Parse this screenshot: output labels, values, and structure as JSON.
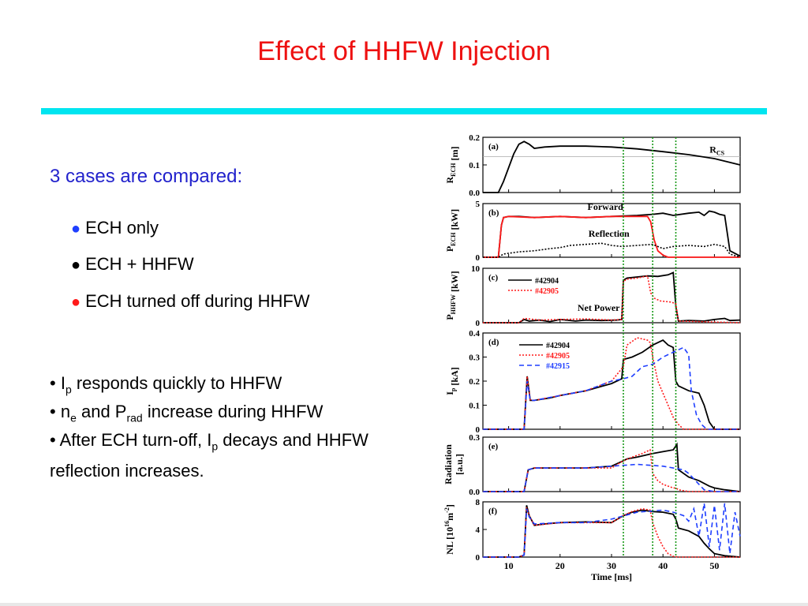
{
  "slide": {
    "title": "Effect of HHFW Injection",
    "intro": "3 cases are compared:",
    "cases": [
      {
        "label": "ECH only",
        "color": "#1f3fff"
      },
      {
        "label": "ECH + HHFW",
        "color": "#000000"
      },
      {
        "label": "ECH turned off during HHFW",
        "color": "#ff1a1a"
      }
    ],
    "notes": {
      "n1_a": "• I",
      "n1_sub": "p",
      "n1_b": " responds quickly to HHFW",
      "n2_a": "• n",
      "n2_sub1": "e",
      "n2_b": " and P",
      "n2_sub2": "rad",
      "n2_c": " increase during HHFW",
      "n3_a": "• After ECH turn-off, I",
      "n3_sub": "p",
      "n3_b": " decays and HHFW reflection increases."
    }
  },
  "chart_data": {
    "type": "line",
    "xlabel": "Time [ms]",
    "xlim": [
      5,
      55
    ],
    "x_ticks": [
      "10",
      "20",
      "30",
      "40",
      "50"
    ],
    "vlines": [
      32.3,
      38.0,
      42.5
    ],
    "colors": {
      "s42904": "#000000",
      "s42905": "#ff1a1a",
      "s42915": "#1f3fff",
      "vline": "#1a9a1a"
    },
    "panels": [
      {
        "id": "a",
        "tag": "(a)",
        "ylabel_main": "R",
        "ylabel_sub": "ECH",
        "ylabel_unit": " [m]",
        "ylim": [
          0,
          0.2
        ],
        "yticks": [
          "0.0",
          "0.1",
          "0.2"
        ],
        "yticks_v": [
          0,
          0.1,
          0.2
        ],
        "annotations": [
          {
            "text_main": "R",
            "text_sub": "CS",
            "x": 50.5,
            "y": 0.145
          }
        ],
        "hline": 0.13,
        "series": [
          {
            "key": "s42904",
            "style": "solid",
            "x": [
              5,
              8,
              9,
              10,
              11,
              12,
              13,
              14,
              15,
              17,
              20,
              25,
              30,
              35,
              40,
              45,
              50,
              55
            ],
            "y": [
              0,
              0,
              0.04,
              0.09,
              0.14,
              0.175,
              0.185,
              0.175,
              0.16,
              0.165,
              0.168,
              0.168,
              0.165,
              0.158,
              0.148,
              0.137,
              0.123,
              0.1
            ]
          }
        ]
      },
      {
        "id": "b",
        "tag": "(b)",
        "ylabel_main": "P",
        "ylabel_sub": "ECH",
        "ylabel_unit": " [kW]",
        "ylim": [
          0,
          5
        ],
        "yticks": [
          "0",
          "5"
        ],
        "yticks_v": [
          0,
          5
        ],
        "annotations": [
          {
            "text_main": "Forward",
            "x": 28.8,
            "y": 4.4
          },
          {
            "text_main": "Reflection",
            "x": 29.5,
            "y": 1.9
          }
        ],
        "series": [
          {
            "key": "s42904",
            "style": "solid",
            "x": [
              5,
              8,
              8.6,
              9,
              10,
              12,
              15,
              20,
              25,
              30,
              35,
              38,
              40,
              42,
              45,
              47,
              48,
              49,
              50,
              51,
              52,
              53,
              55
            ],
            "y": [
              0,
              0,
              3.0,
              3.7,
              3.8,
              3.8,
              3.7,
              3.8,
              3.7,
              3.8,
              3.9,
              4.0,
              4.1,
              3.9,
              4.1,
              4.2,
              3.9,
              4.3,
              4.2,
              4.0,
              3.9,
              0.6,
              0.1
            ]
          },
          {
            "key": "s42905",
            "style": "solid",
            "x": [
              5,
              8,
              8.6,
              9,
              10,
              15,
              20,
              25,
              30,
              35,
              37,
              37.6,
              38.3,
              39,
              40,
              41,
              55
            ],
            "y": [
              0,
              0,
              3.0,
              3.7,
              3.8,
              3.7,
              3.8,
              3.7,
              3.8,
              3.8,
              3.8,
              3.3,
              1.6,
              0.6,
              0.2,
              0,
              0
            ]
          },
          {
            "key": "s42904",
            "style": "dotted",
            "x": [
              5,
              8,
              9,
              12,
              15,
              18,
              20,
              22,
              25,
              28,
              30,
              32,
              35,
              38,
              40,
              42,
              45,
              48,
              50,
              52,
              53,
              55
            ],
            "y": [
              0,
              0,
              0.3,
              0.5,
              0.6,
              0.8,
              0.9,
              1.1,
              1.2,
              1.3,
              1.1,
              1.0,
              1.1,
              1.2,
              0.8,
              1.0,
              1.1,
              1.0,
              1.2,
              1.0,
              0.3,
              0
            ]
          }
        ]
      },
      {
        "id": "c",
        "tag": "(c)",
        "ylabel_main": "P",
        "ylabel_sub": "HHFW",
        "ylabel_unit": " [kW]",
        "ylim": [
          0,
          10
        ],
        "yticks": [
          "0",
          "10"
        ],
        "yticks_v": [
          0,
          10
        ],
        "annotations": [
          {
            "text_main": "Net Power",
            "x": 27.5,
            "y": 2.2
          }
        ],
        "legend": [
          {
            "label": "#42904",
            "key": "s42904",
            "style": "solid"
          },
          {
            "label": "#42905",
            "key": "s42905",
            "style": "dotted"
          }
        ],
        "series": [
          {
            "key": "s42904",
            "style": "solid",
            "x": [
              5,
              12,
              13,
              14,
              16,
              18,
              20,
              23,
              25,
              28,
              31,
              32,
              32.3,
              33,
              35,
              37,
              39,
              41,
              42,
              42.5,
              43,
              45,
              48,
              50,
              52,
              53,
              55
            ],
            "y": [
              0,
              0,
              0.6,
              0.3,
              0.5,
              0.2,
              0.6,
              0.3,
              0.5,
              0.4,
              0.5,
              0.6,
              7.8,
              8.2,
              8.4,
              8.6,
              8.5,
              8.8,
              9.2,
              3.0,
              0.3,
              0.4,
              0.3,
              0.6,
              0.8,
              0.4,
              0.5
            ]
          },
          {
            "key": "s42905",
            "style": "dotted",
            "x": [
              5,
              12,
              13,
              16,
              20,
              25,
              30,
              32,
              32.3,
              33,
              35,
              37,
              37.6,
              38.3,
              39.5,
              41.5,
              42.5,
              43,
              55
            ],
            "y": [
              0,
              0,
              0.8,
              0.5,
              0.6,
              0.7,
              0.5,
              0.6,
              7.6,
              8.0,
              8.2,
              8.6,
              5.5,
              4.5,
              4.0,
              3.8,
              3.5,
              0.3,
              0
            ]
          }
        ]
      },
      {
        "id": "d",
        "tag": "(d)",
        "ylabel_main": "I",
        "ylabel_sub": "p",
        "ylabel_unit": " [kA]",
        "ylim": [
          0,
          0.4
        ],
        "yticks": [
          "0",
          "0.1",
          "0.2",
          "0.3",
          "0.4"
        ],
        "yticks_v": [
          0,
          0.1,
          0.2,
          0.3,
          0.4
        ],
        "legend": [
          {
            "label": "#42904",
            "key": "s42904",
            "style": "solid"
          },
          {
            "label": "#42905",
            "key": "s42905",
            "style": "dotted"
          },
          {
            "label": "#42915",
            "key": "s42915",
            "style": "dashed"
          }
        ],
        "series": [
          {
            "key": "s42904",
            "style": "solid",
            "x": [
              5,
              13,
              13.6,
              14.2,
              15,
              18,
              20,
              25,
              30,
              32,
              32.3,
              34,
              36,
              38,
              40,
              41,
              42,
              42.5,
              43,
              45,
              47,
              48,
              49,
              50,
              55
            ],
            "y": [
              0,
              0,
              0.22,
              0.12,
              0.12,
              0.13,
              0.14,
              0.16,
              0.19,
              0.21,
              0.29,
              0.3,
              0.32,
              0.35,
              0.37,
              0.35,
              0.34,
              0.2,
              0.18,
              0.16,
              0.15,
              0.1,
              0.03,
              0,
              0
            ]
          },
          {
            "key": "s42905",
            "style": "dotted",
            "x": [
              5,
              13,
              13.6,
              14.2,
              15,
              20,
              25,
              30,
              32.3,
              33,
              35,
              37,
              37.5,
              38,
              39,
              40,
              41,
              42,
              43,
              44,
              46,
              55
            ],
            "y": [
              0,
              0,
              0.22,
              0.12,
              0.12,
              0.14,
              0.16,
              0.2,
              0.26,
              0.35,
              0.38,
              0.37,
              0.36,
              0.3,
              0.2,
              0.15,
              0.1,
              0.05,
              0.02,
              0,
              0,
              0
            ]
          },
          {
            "key": "s42915",
            "style": "dashed",
            "x": [
              5,
              13,
              13.6,
              14.2,
              15,
              20,
              25,
              30,
              32.3,
              34,
              36,
              38,
              40,
              42,
              44,
              45,
              45.5,
              46.5,
              47.5,
              48.5,
              50,
              55
            ],
            "y": [
              0,
              0,
              0.2,
              0.12,
              0.12,
              0.14,
              0.16,
              0.2,
              0.21,
              0.22,
              0.26,
              0.27,
              0.3,
              0.32,
              0.34,
              0.31,
              0.16,
              0.06,
              0.02,
              0,
              0,
              0
            ]
          }
        ]
      },
      {
        "id": "e",
        "tag": "(e)",
        "ylabel_main": "Radiation",
        "ylabel_line2": "[a.u.]",
        "ylim": [
          0,
          0.3
        ],
        "yticks": [
          "0.0",
          "0.3"
        ],
        "yticks_v": [
          0,
          0.3
        ],
        "series": [
          {
            "key": "s42904",
            "style": "solid",
            "x": [
              5,
              13,
              13.8,
              15,
              20,
              25,
              30,
              32.3,
              33,
              35,
              38,
              40,
              42,
              42.7,
              43,
              45,
              47,
              49,
              50,
              52,
              55
            ],
            "y": [
              0,
              0,
              0.12,
              0.13,
              0.13,
              0.13,
              0.14,
              0.17,
              0.18,
              0.19,
              0.21,
              0.22,
              0.23,
              0.26,
              0.12,
              0.08,
              0.06,
              0.03,
              0.02,
              0.01,
              0
            ]
          },
          {
            "key": "s42905",
            "style": "dotted",
            "x": [
              5,
              13,
              13.8,
              15,
              20,
              25,
              30,
              32.3,
              34,
              36,
              37.5,
              38,
              39,
              40,
              41,
              42,
              42.5,
              43,
              44,
              45,
              50,
              55
            ],
            "y": [
              0,
              0,
              0.12,
              0.13,
              0.13,
              0.13,
              0.13,
              0.17,
              0.19,
              0.21,
              0.23,
              0.1,
              0.06,
              0.04,
              0.03,
              0.02,
              0.02,
              0.01,
              0.005,
              0,
              0,
              0
            ]
          },
          {
            "key": "s42915",
            "style": "dashed",
            "x": [
              5,
              13,
              13.8,
              15,
              20,
              25,
              30,
              35,
              40,
              42,
              44,
              45,
              46,
              47,
              48,
              50,
              55
            ],
            "y": [
              0,
              0,
              0.12,
              0.13,
              0.13,
              0.13,
              0.14,
              0.15,
              0.14,
              0.13,
              0.12,
              0.1,
              0.07,
              0.04,
              0.01,
              0,
              0
            ]
          }
        ]
      },
      {
        "id": "f",
        "tag": "(f)",
        "ylabel_main": "NL [10",
        "ylabel_sup": "16",
        "ylabel_unit": "m",
        "ylabel_sup2": "-2",
        "ylabel_end": "]",
        "ylim": [
          0,
          8
        ],
        "yticks": [
          "0",
          "4",
          "8"
        ],
        "yticks_v": [
          0,
          4,
          8
        ],
        "series": [
          {
            "key": "s42904",
            "style": "solid",
            "x": [
              5,
              12,
              13,
              13.5,
              14,
              15,
              17,
              20,
              25,
              30,
              32.3,
              34,
              36,
              38,
              40,
              42,
              42.5,
              43,
              45,
              47,
              48,
              49,
              50,
              52,
              55
            ],
            "y": [
              0,
              0,
              0.3,
              7.5,
              6.0,
              4.6,
              4.8,
              5.0,
              5.1,
              5.0,
              6.0,
              6.5,
              6.8,
              6.6,
              6.5,
              6.2,
              5.5,
              4.2,
              3.8,
              3.0,
              2.0,
              1.2,
              0.5,
              0.2,
              0
            ]
          },
          {
            "key": "s42905",
            "style": "dotted",
            "x": [
              5,
              12,
              13,
              13.5,
              14,
              15,
              20,
              25,
              30,
              32.3,
              34,
              36,
              37.5,
              38,
              39,
              40,
              41,
              42,
              43,
              55
            ],
            "y": [
              0,
              0,
              0.3,
              7.2,
              6.0,
              4.6,
              5.0,
              5.0,
              5.0,
              6.0,
              6.6,
              7.0,
              6.8,
              5.0,
              3.0,
              1.5,
              0.5,
              0.1,
              0,
              0
            ]
          },
          {
            "key": "s42915",
            "style": "dashed",
            "x": [
              5,
              12,
              13,
              13.5,
              14,
              15,
              20,
              25,
              30,
              35,
              40,
              42,
              44,
              45,
              46,
              47,
              48,
              49,
              50,
              51,
              52,
              53,
              54,
              55
            ],
            "y": [
              0,
              0,
              0.3,
              7.0,
              5.8,
              4.8,
              5.0,
              5.0,
              5.5,
              6.5,
              6.8,
              6.5,
              6.0,
              5.2,
              7.0,
              3.0,
              7.8,
              1.5,
              7.5,
              1.0,
              7.8,
              0.5,
              6.5,
              3.0
            ]
          }
        ]
      }
    ]
  }
}
